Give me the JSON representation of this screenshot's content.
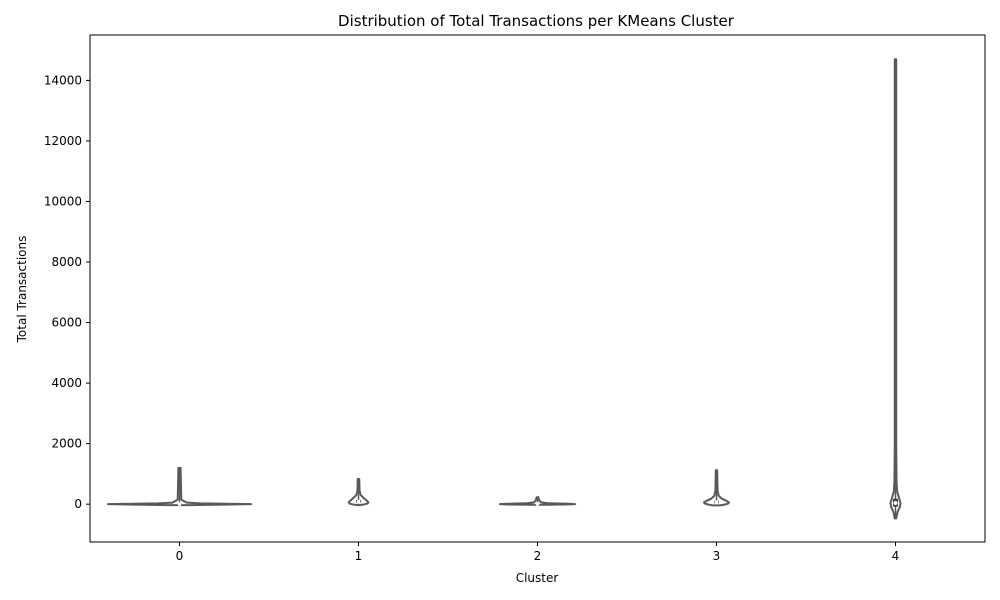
{
  "colors": {
    "violin_fill": "#ffffff",
    "violin_stroke": "#595959",
    "box_color": "#404040",
    "median_color": "#ffffff",
    "axis_color": "#000000"
  },
  "chart_data": {
    "type": "violin",
    "title": "Distribution of Total Transactions per KMeans Cluster",
    "xlabel": "Cluster",
    "ylabel": "Total Transactions",
    "categories": [
      "0",
      "1",
      "2",
      "3",
      "4"
    ],
    "ylim": [
      -1250,
      15500
    ],
    "yticks": [
      0,
      2000,
      4000,
      6000,
      8000,
      10000,
      12000,
      14000
    ],
    "grid": false,
    "violins": [
      {
        "cluster": "0",
        "min": -30,
        "max": 1200,
        "q1": 2,
        "median": 6,
        "q3": 12,
        "density": [
          [
            -30,
            0.06
          ],
          [
            -15,
            0.25
          ],
          [
            0,
            0.4
          ],
          [
            10,
            0.3
          ],
          [
            25,
            0.12
          ],
          [
            50,
            0.04
          ],
          [
            150,
            0.01
          ],
          [
            1200,
            0.006
          ]
        ]
      },
      {
        "cluster": "1",
        "min": -30,
        "max": 830,
        "q1": 40,
        "median": 80,
        "q3": 140,
        "density": [
          [
            -30,
            0.005
          ],
          [
            -10,
            0.03
          ],
          [
            20,
            0.05
          ],
          [
            60,
            0.055
          ],
          [
            120,
            0.045
          ],
          [
            200,
            0.03
          ],
          [
            300,
            0.012
          ],
          [
            450,
            0.006
          ],
          [
            830,
            0.004
          ]
        ]
      },
      {
        "cluster": "2",
        "min": -20,
        "max": 230,
        "q1": 1,
        "median": 4,
        "q3": 10,
        "density": [
          [
            -20,
            0.06
          ],
          [
            -8,
            0.18
          ],
          [
            2,
            0.21
          ],
          [
            12,
            0.17
          ],
          [
            30,
            0.06
          ],
          [
            60,
            0.02
          ],
          [
            120,
            0.01
          ],
          [
            230,
            0.005
          ]
        ]
      },
      {
        "cluster": "3",
        "min": -40,
        "max": 1120,
        "q1": 25,
        "median": 60,
        "q3": 110,
        "density": [
          [
            -40,
            0.02
          ],
          [
            -15,
            0.045
          ],
          [
            20,
            0.065
          ],
          [
            60,
            0.07
          ],
          [
            110,
            0.055
          ],
          [
            180,
            0.03
          ],
          [
            280,
            0.012
          ],
          [
            450,
            0.006
          ],
          [
            1120,
            0.004
          ]
        ]
      },
      {
        "cluster": "4",
        "min": -470,
        "max": 14700,
        "q1": -80,
        "median": 40,
        "q3": 180,
        "density": [
          [
            -470,
            0.004
          ],
          [
            -250,
            0.012
          ],
          [
            -80,
            0.025
          ],
          [
            40,
            0.028
          ],
          [
            200,
            0.02
          ],
          [
            400,
            0.01
          ],
          [
            700,
            0.006
          ],
          [
            2000,
            0.004
          ],
          [
            14700,
            0.004
          ]
        ]
      }
    ]
  }
}
